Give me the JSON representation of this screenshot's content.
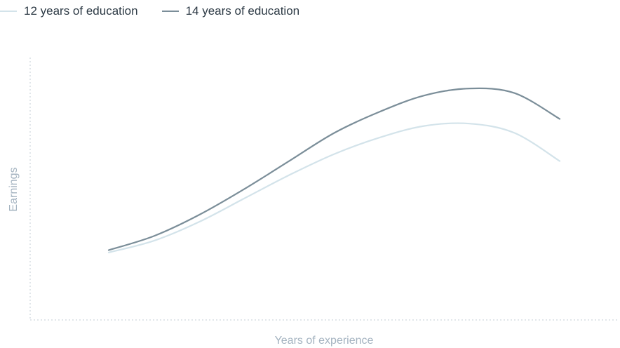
{
  "colors": {
    "series_1": "#d3e3ea",
    "series_2": "#7b8e99",
    "axis": "#c3ccd4",
    "axis_label": "#a4b3c0"
  },
  "chart_data": {
    "type": "line",
    "title": "",
    "xlabel": "Years of experience",
    "ylabel": "Earnings",
    "xlim": [
      0,
      10
    ],
    "ylim": [
      0,
      10
    ],
    "grid": false,
    "ticks_shown": false,
    "legend_position": "top-left",
    "x": [
      0,
      1,
      2,
      3,
      4,
      5,
      6,
      7,
      8,
      9,
      10
    ],
    "series": [
      {
        "name": "12 years of education",
        "color": "#d3e3ea",
        "values": [
          2.1,
          2.6,
          3.4,
          4.4,
          5.4,
          6.3,
          7.0,
          7.5,
          7.6,
          7.2,
          6.0
        ]
      },
      {
        "name": "14 years of education",
        "color": "#7b8e99",
        "values": [
          2.2,
          2.8,
          3.7,
          4.8,
          6.0,
          7.2,
          8.1,
          8.8,
          9.1,
          8.9,
          7.8
        ]
      }
    ]
  }
}
